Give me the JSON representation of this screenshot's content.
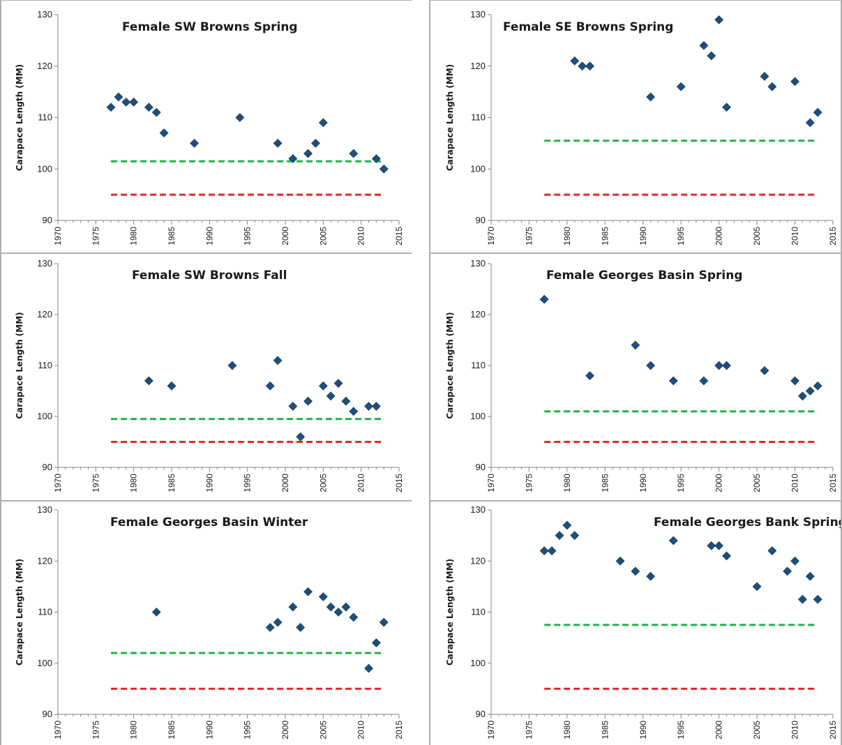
{
  "chart_data": [
    {
      "type": "scatter",
      "title": "Female SW Browns Spring",
      "ylabel": "Carapace Length (MM)",
      "xlim": [
        1970,
        2015
      ],
      "ylim": [
        90,
        130
      ],
      "xticks": [
        1970,
        1975,
        1980,
        1985,
        1990,
        1995,
        2000,
        2005,
        2010,
        2015
      ],
      "yticks": [
        90,
        100,
        110,
        120,
        130
      ],
      "x": [
        1977,
        1978,
        1979,
        1980,
        1982,
        1983,
        1984,
        1988,
        1994,
        1999,
        2001,
        2003,
        2004,
        2005,
        2009,
        2012,
        2013
      ],
      "y": [
        112,
        114,
        113,
        113,
        112,
        111,
        107,
        105,
        110,
        105,
        102,
        103,
        105,
        109,
        103,
        102,
        100
      ],
      "reference_lines": [
        {
          "color": "#22b14c",
          "style": "dashed",
          "value": 101.5,
          "from": 1977,
          "to": 2013
        },
        {
          "color": "#e8262a",
          "style": "dashed",
          "value": 95,
          "from": 1977,
          "to": 2013
        }
      ],
      "marker_color": "#1f4e79"
    },
    {
      "type": "scatter",
      "title": "Female SE Browns Spring",
      "ylabel": "Carapace Length (MM)",
      "xlim": [
        1970,
        2015
      ],
      "ylim": [
        90,
        130
      ],
      "xticks": [
        1970,
        1975,
        1980,
        1985,
        1990,
        1995,
        2000,
        2005,
        2010,
        2015
      ],
      "yticks": [
        90,
        100,
        110,
        120,
        130
      ],
      "x": [
        1981,
        1982,
        1983,
        1991,
        1995,
        1998,
        1999,
        2000,
        2001,
        2006,
        2007,
        2010,
        2012,
        2013
      ],
      "y": [
        121,
        120,
        120,
        114,
        116,
        124,
        122,
        129,
        112,
        118,
        116,
        117,
        109,
        111
      ],
      "reference_lines": [
        {
          "color": "#22b14c",
          "style": "dashed",
          "value": 105.5,
          "from": 1977,
          "to": 2013
        },
        {
          "color": "#e8262a",
          "style": "dashed",
          "value": 95,
          "from": 1977,
          "to": 2013
        }
      ],
      "marker_color": "#1f4e79"
    },
    {
      "type": "scatter",
      "title": "Female SW Browns Fall",
      "ylabel": "Carapace Length (MM)",
      "xlim": [
        1970,
        2015
      ],
      "ylim": [
        90,
        130
      ],
      "xticks": [
        1970,
        1975,
        1980,
        1985,
        1990,
        1995,
        2000,
        2005,
        2010,
        2015
      ],
      "yticks": [
        90,
        100,
        110,
        120,
        130
      ],
      "x": [
        1982,
        1985,
        1993,
        1998,
        1999,
        2001,
        2002,
        2003,
        2005,
        2006,
        2007,
        2008,
        2009,
        2011,
        2012
      ],
      "y": [
        107,
        106,
        110,
        106,
        111,
        102,
        96,
        103,
        106,
        104,
        106.5,
        103,
        101,
        102,
        102
      ],
      "reference_lines": [
        {
          "color": "#22b14c",
          "style": "dashed",
          "value": 99.5,
          "from": 1977,
          "to": 2013
        },
        {
          "color": "#e8262a",
          "style": "dashed",
          "value": 95,
          "from": 1977,
          "to": 2013
        }
      ],
      "marker_color": "#1f4e79"
    },
    {
      "type": "scatter",
      "title": "Female Georges Basin Spring",
      "ylabel": "Carapace Length (MM)",
      "xlim": [
        1970,
        2015
      ],
      "ylim": [
        90,
        130
      ],
      "xticks": [
        1970,
        1975,
        1980,
        1985,
        1990,
        1995,
        2000,
        2005,
        2010,
        2015
      ],
      "yticks": [
        90,
        100,
        110,
        120,
        130
      ],
      "x": [
        1977,
        1983,
        1989,
        1991,
        1994,
        1998,
        2000,
        2001,
        2006,
        2010,
        2011,
        2012,
        2013
      ],
      "y": [
        123,
        108,
        114,
        110,
        107,
        107,
        110,
        110,
        109,
        107,
        104,
        105,
        106
      ],
      "reference_lines": [
        {
          "color": "#22b14c",
          "style": "dashed",
          "value": 101,
          "from": 1977,
          "to": 2013
        },
        {
          "color": "#e8262a",
          "style": "dashed",
          "value": 95,
          "from": 1977,
          "to": 2013
        }
      ],
      "marker_color": "#1f4e79"
    },
    {
      "type": "scatter",
      "title": "Female Georges Basin Winter",
      "ylabel": "Carapace Length (MM)",
      "xlim": [
        1970,
        2015
      ],
      "ylim": [
        90,
        130
      ],
      "xticks": [
        1970,
        1975,
        1980,
        1985,
        1990,
        1995,
        2000,
        2005,
        2010,
        2015
      ],
      "yticks": [
        90,
        100,
        110,
        120,
        130
      ],
      "x": [
        1983,
        1998,
        1999,
        2001,
        2002,
        2003,
        2005,
        2006,
        2007,
        2008,
        2009,
        2011,
        2012,
        2013
      ],
      "y": [
        110,
        107,
        108,
        111,
        107,
        114,
        113,
        111,
        110,
        111,
        109,
        99,
        104,
        108
      ],
      "reference_lines": [
        {
          "color": "#22b14c",
          "style": "dashed",
          "value": 102,
          "from": 1977,
          "to": 2013
        },
        {
          "color": "#e8262a",
          "style": "dashed",
          "value": 95,
          "from": 1977,
          "to": 2013
        }
      ],
      "marker_color": "#1f4e79"
    },
    {
      "type": "scatter",
      "title": "Female Georges Bank Spring",
      "ylabel": "Carapace Length (MM)",
      "xlim": [
        1970,
        2015
      ],
      "ylim": [
        90,
        130
      ],
      "xticks": [
        1970,
        1975,
        1980,
        1985,
        1990,
        1995,
        2000,
        2005,
        2010,
        2015
      ],
      "yticks": [
        90,
        100,
        110,
        120,
        130
      ],
      "x": [
        1977,
        1978,
        1979,
        1980,
        1981,
        1987,
        1989,
        1991,
        1994,
        1999,
        2000,
        2001,
        2005,
        2007,
        2009,
        2010,
        2011,
        2012,
        2013
      ],
      "y": [
        122,
        122,
        125,
        127,
        125,
        120,
        118,
        117,
        124,
        123,
        123,
        121,
        115,
        122,
        118,
        120,
        112.5,
        117,
        112.5
      ],
      "reference_lines": [
        {
          "color": "#22b14c",
          "style": "dashed",
          "value": 107.5,
          "from": 1977,
          "to": 2013
        },
        {
          "color": "#e8262a",
          "style": "dashed",
          "value": 95,
          "from": 1977,
          "to": 2013
        }
      ],
      "marker_color": "#1f4e79"
    }
  ]
}
